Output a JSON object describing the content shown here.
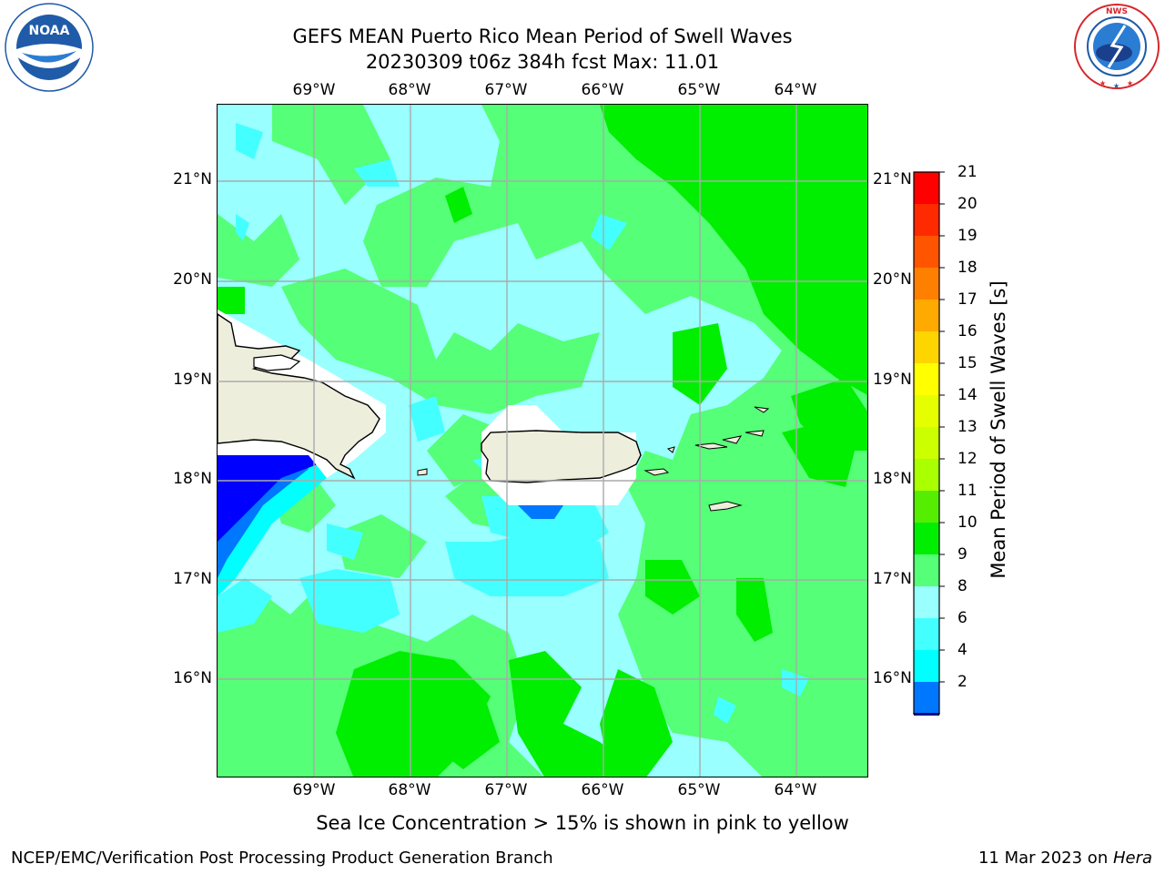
{
  "title": {
    "line1": "GEFS MEAN Puerto Rico Mean Period of Swell Waves",
    "line2": "20230309 t06z 384h fcst   Max: 11.01"
  },
  "logos": {
    "left": {
      "name": "NOAA",
      "arc_text": "NATIONAL OCEANIC AND ATMOSPHERIC ADMINISTRATION",
      "bottom_text": "U.S. DEPARTMENT OF COMMERCE",
      "color": "#1f5ba8"
    },
    "right": {
      "name": "NATIONAL WEATHER SERVICE",
      "color": "#d7262b"
    }
  },
  "map": {
    "lon_ticks": [
      "69°W",
      "68°W",
      "67°W",
      "66°W",
      "65°W",
      "64°W"
    ],
    "lat_ticks": [
      "21°N",
      "20°N",
      "19°N",
      "18°N",
      "17°N",
      "16°N"
    ],
    "lon_range": [
      -70,
      -63.25
    ],
    "lat_range": [
      15,
      21.75
    ],
    "background_value_color": "#99ffff",
    "land_color": "#eeeedd"
  },
  "colorbar": {
    "label": "Mean Period of Swell Waves [s]",
    "ticks": [
      "21",
      "20",
      "19",
      "18",
      "17",
      "16",
      "15",
      "14",
      "13",
      "12",
      "11",
      "10",
      "9",
      "8",
      "6",
      "4",
      "2"
    ],
    "colors_top_to_bottom": [
      "#ff0000",
      "#ff2a00",
      "#ff5500",
      "#ff8000",
      "#ffaa00",
      "#ffd500",
      "#ffff00",
      "#e6ff00",
      "#ccff00",
      "#aaff00",
      "#55ee00",
      "#00ee00",
      "#55ff77",
      "#99ffff",
      "#44ffff",
      "#00ffff",
      "#0077ff"
    ],
    "extend_color": "#0000ff"
  },
  "notes": {
    "sea_ice": "Sea Ice Concentration > 15% is shown in pink to yellow"
  },
  "footer": {
    "left": "NCEP/EMC/Verification Post Processing Product Generation Branch",
    "right_date": "11 Mar 2023 on ",
    "right_host": "Hera"
  }
}
